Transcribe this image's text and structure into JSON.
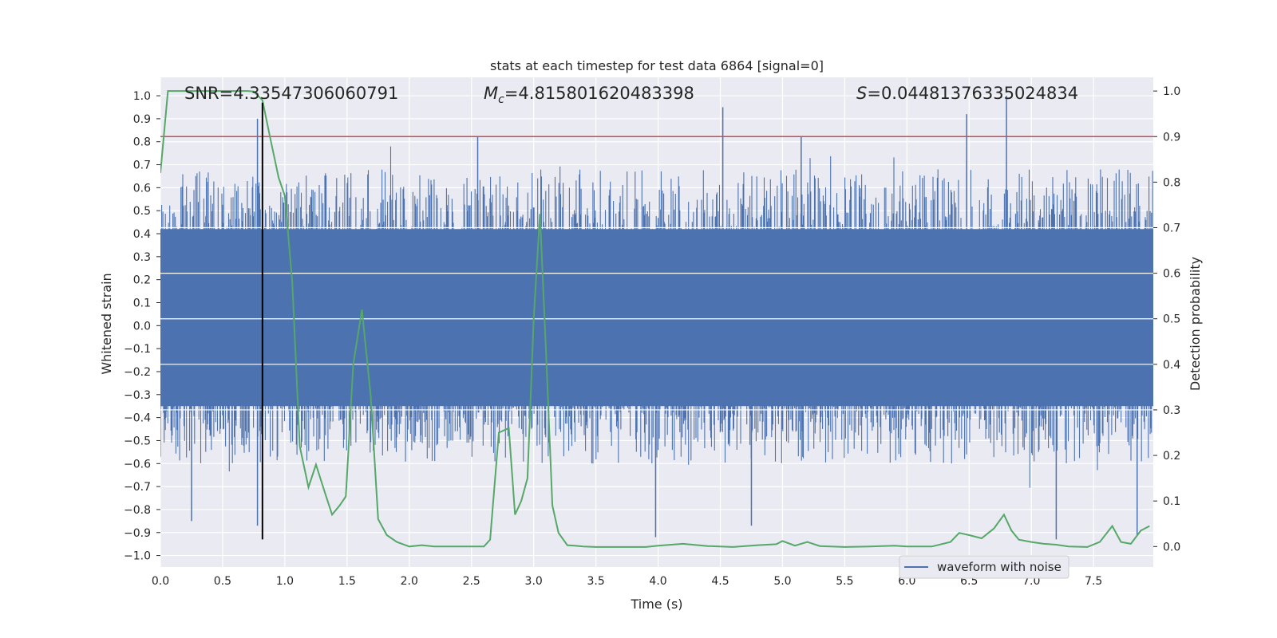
{
  "chart_data": {
    "type": "line",
    "title": "stats at each timestep for test data 6864 [signal=0]",
    "xlabel": "Time (s)",
    "ylabel": "Whitened strain",
    "y2label": "Detection probability",
    "xlim": [
      0.0,
      7.98
    ],
    "ylim": [
      -1.05,
      1.08
    ],
    "y2lim": [
      -0.045,
      1.03
    ],
    "xticks": [
      0.0,
      0.5,
      1.0,
      1.5,
      2.0,
      2.5,
      3.0,
      3.5,
      4.0,
      4.5,
      5.0,
      5.5,
      6.0,
      6.5,
      7.0,
      7.5
    ],
    "xtick_labels": [
      "0.0",
      "0.5",
      "1.0",
      "1.5",
      "2.0",
      "2.5",
      "3.0",
      "3.5",
      "4.0",
      "4.5",
      "5.0",
      "5.5",
      "6.0",
      "6.5",
      "7.0",
      "7.5"
    ],
    "yticks": [
      1.0,
      0.9,
      0.8,
      0.7,
      0.6,
      0.5,
      0.4,
      0.3,
      0.2,
      0.1,
      0.0,
      -0.1,
      -0.2,
      -0.3,
      -0.4,
      -0.5,
      -0.6,
      -0.7,
      -0.8,
      -0.9,
      -1.0
    ],
    "ytick_labels": [
      "1.0",
      "0.9",
      "0.8",
      "0.7",
      "0.6",
      "0.5",
      "0.4",
      "0.3",
      "0.2",
      "0.1",
      "0.0",
      "−0.1",
      "−0.2",
      "−0.3",
      "−0.4",
      "−0.5",
      "−0.6",
      "−0.7",
      "−0.8",
      "−0.9",
      "−1.0"
    ],
    "y2ticks": [
      1.0,
      0.9,
      0.8,
      0.7,
      0.6,
      0.5,
      0.4,
      0.3,
      0.2,
      0.1,
      0.0
    ],
    "y2tick_labels": [
      "1.0",
      "0.9",
      "0.8",
      "0.7",
      "0.6",
      "0.5",
      "0.4",
      "0.3",
      "0.2",
      "0.1",
      "0.0"
    ],
    "grid": true,
    "legend": {
      "position": "bottom-right",
      "entries": [
        "waveform with noise"
      ]
    },
    "annotations": {
      "snr_label": "SNR=4.33547306060791",
      "mc_symbol": "M",
      "mc_sub": "c",
      "mc_value": "=4.815801620483398",
      "s_symbol": "S",
      "s_value": "=0.04481376335024834"
    },
    "threshold": {
      "axis": "y2",
      "value": 0.9,
      "color": "#c44e52"
    },
    "marker_line": {
      "x": 0.82,
      "y_from": -0.93,
      "y_to": 0.97,
      "color": "#000000"
    },
    "noise_series": {
      "name": "waveform with noise",
      "color": "#4c72b0",
      "n_samples": 1600,
      "dense_band": [
        -0.35,
        0.42
      ],
      "peaks": [
        {
          "x": 0.78,
          "value": 0.9
        },
        {
          "x": 0.82,
          "value": 0.97
        },
        {
          "x": 2.55,
          "value": 0.82
        },
        {
          "x": 4.52,
          "value": 0.95
        },
        {
          "x": 5.15,
          "value": 0.82
        },
        {
          "x": 6.48,
          "value": 0.92
        },
        {
          "x": 6.8,
          "value": 1.0
        },
        {
          "x": 0.25,
          "value": -0.85
        },
        {
          "x": 0.78,
          "value": -0.87
        },
        {
          "x": 3.98,
          "value": -0.92
        },
        {
          "x": 4.75,
          "value": -0.87
        },
        {
          "x": 7.2,
          "value": -0.93
        },
        {
          "x": 7.85,
          "value": -0.91
        }
      ]
    },
    "probability_series": {
      "name": "detection probability",
      "color": "#55a868",
      "axis": "y2",
      "x": [
        0.0,
        0.06,
        0.12,
        0.3,
        0.5,
        0.6,
        0.7,
        0.75,
        0.82,
        0.88,
        0.95,
        1.0,
        1.06,
        1.12,
        1.19,
        1.25,
        1.32,
        1.38,
        1.44,
        1.49,
        1.55,
        1.62,
        1.69,
        1.75,
        1.82,
        1.9,
        2.0,
        2.1,
        2.2,
        2.3,
        2.4,
        2.5,
        2.6,
        2.65,
        2.72,
        2.8,
        2.85,
        2.9,
        2.95,
        3.0,
        3.05,
        3.1,
        3.15,
        3.2,
        3.27,
        3.33,
        3.4,
        3.5,
        3.7,
        3.9,
        4.0,
        4.2,
        4.4,
        4.5,
        4.6,
        4.8,
        4.95,
        5.0,
        5.1,
        5.2,
        5.3,
        5.5,
        5.7,
        5.9,
        6.0,
        6.2,
        6.35,
        6.42,
        6.5,
        6.6,
        6.7,
        6.78,
        6.84,
        6.9,
        7.0,
        7.1,
        7.2,
        7.3,
        7.45,
        7.55,
        7.65,
        7.72,
        7.8,
        7.88,
        7.95
      ],
      "values": [
        0.82,
        1.0,
        1.0,
        1.0,
        1.0,
        1.0,
        1.0,
        0.999,
        0.98,
        0.9,
        0.81,
        0.77,
        0.58,
        0.22,
        0.13,
        0.18,
        0.12,
        0.07,
        0.09,
        0.11,
        0.4,
        0.52,
        0.33,
        0.06,
        0.025,
        0.01,
        0.0,
        0.003,
        0.0,
        0.0,
        0.0,
        0.0,
        0.0,
        0.015,
        0.25,
        0.26,
        0.07,
        0.1,
        0.15,
        0.5,
        0.73,
        0.42,
        0.09,
        0.03,
        0.003,
        0.002,
        0.0,
        -0.001,
        -0.001,
        -0.001,
        0.002,
        0.006,
        0.001,
        0.0,
        -0.001,
        0.003,
        0.005,
        0.012,
        0.002,
        0.01,
        0.001,
        -0.001,
        0.0,
        0.002,
        0.0,
        0.0,
        0.01,
        0.03,
        0.025,
        0.018,
        0.04,
        0.07,
        0.035,
        0.015,
        0.01,
        0.006,
        0.004,
        0.0,
        -0.001,
        0.01,
        0.045,
        0.01,
        0.006,
        0.035,
        0.045
      ]
    }
  }
}
